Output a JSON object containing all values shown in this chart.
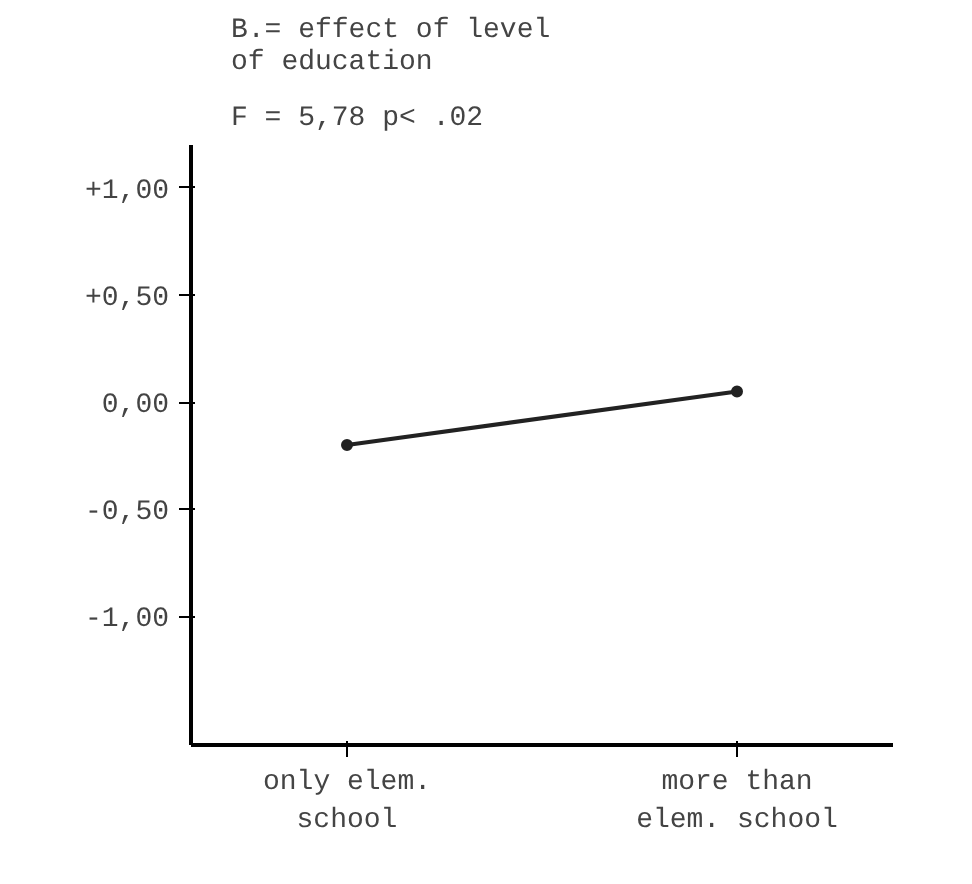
{
  "chart_data": {
    "type": "line",
    "title": "B.= effect of level\nof education",
    "annotations": [
      "F = 5,78  p< .02"
    ],
    "categories": [
      "only elem.\nschool",
      "more than\nelem. school"
    ],
    "series": [
      {
        "color": "#222222",
        "values": [
          -0.2,
          0.05
        ]
      }
    ],
    "ylim": [
      -1.6,
      1.2
    ],
    "yticks": [
      {
        "value": 1,
        "label": "+1,00"
      },
      {
        "value": 0.5,
        "label": "+0,50"
      },
      {
        "value": 0,
        "label": "0,00"
      },
      {
        "value": -0.5,
        "label": "-0,50"
      },
      {
        "value": -1,
        "label": "-1,00"
      }
    ],
    "grid": false,
    "marker": "circle",
    "line_style": "solid"
  }
}
